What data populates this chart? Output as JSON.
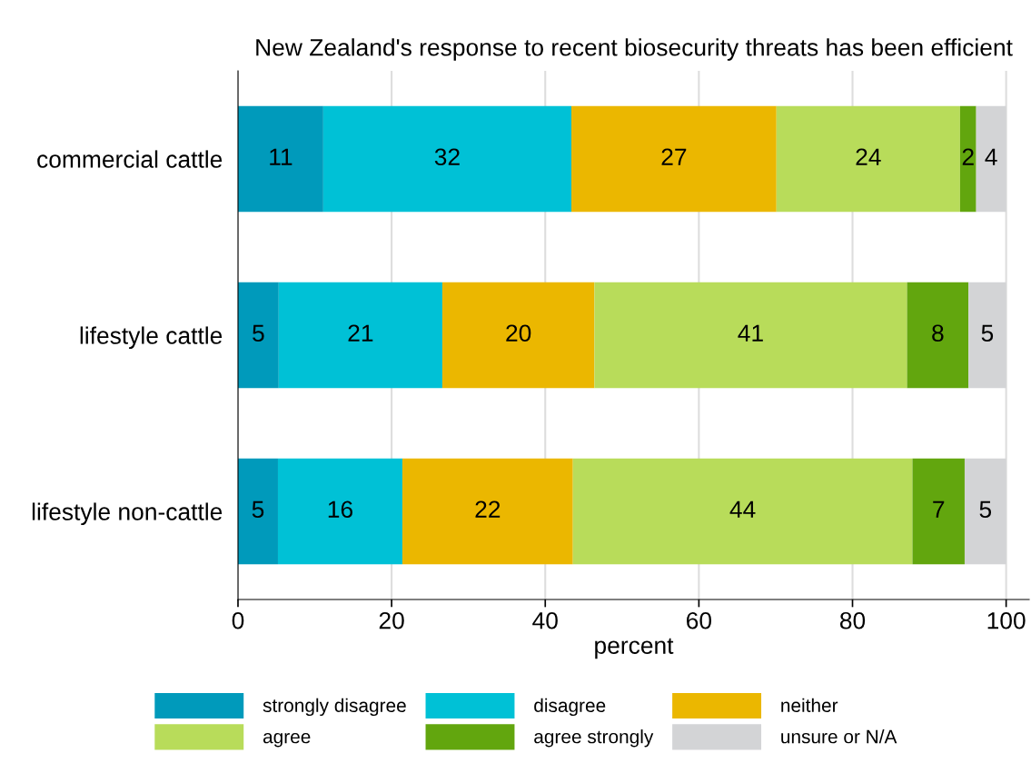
{
  "chart_data": {
    "type": "bar",
    "orientation": "horizontal",
    "stacked": true,
    "title": "New Zealand's response to recent biosecurity threats has been efficient",
    "xlabel": "percent",
    "categories": [
      "commercial cattle",
      "lifestyle cattle",
      "lifestyle non-cattle"
    ],
    "series": [
      {
        "name": "strongly disagree",
        "color": "#009abb",
        "values": [
          11.1,
          5.3,
          5.2
        ],
        "value_labels": [
          "11",
          "5",
          "5"
        ]
      },
      {
        "name": "disagree",
        "color": "#00c1d6",
        "values": [
          32.3,
          21.3,
          16.2
        ],
        "value_labels": [
          "32",
          "21",
          "16"
        ]
      },
      {
        "name": "neither",
        "color": "#ebb700",
        "values": [
          26.7,
          19.8,
          22.2
        ],
        "value_labels": [
          "27",
          "20",
          "22"
        ]
      },
      {
        "name": "agree",
        "color": "#b8dc5a",
        "values": [
          23.9,
          40.7,
          44.2
        ],
        "value_labels": [
          "24",
          "41",
          "44"
        ]
      },
      {
        "name": "agree strongly",
        "color": "#62a60e",
        "values": [
          2.1,
          8.0,
          6.8
        ],
        "value_labels": [
          "2",
          "8",
          "7"
        ]
      },
      {
        "name": "unsure or N/A",
        "color": "#d3d4d6",
        "values": [
          3.9,
          4.9,
          5.4
        ],
        "value_labels": [
          "4",
          "5",
          "5"
        ]
      }
    ],
    "xlim": [
      0,
      103
    ],
    "xticks": [
      0,
      20,
      40,
      60,
      80,
      100
    ],
    "grid": "x",
    "legend": "bottom"
  }
}
